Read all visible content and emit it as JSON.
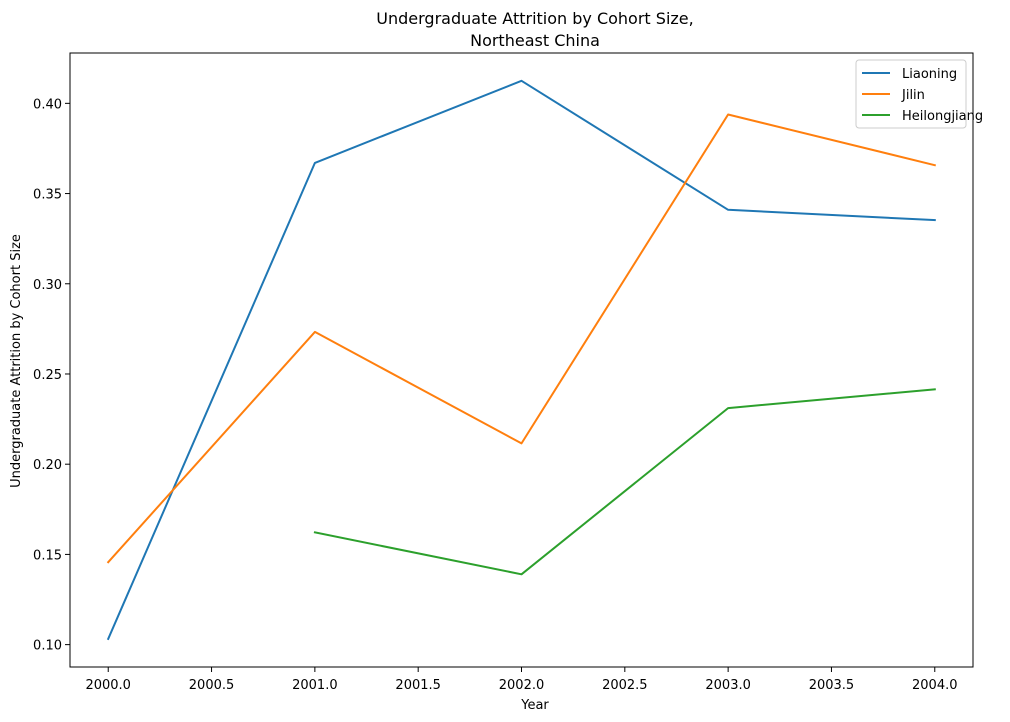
{
  "chart_data": {
    "type": "line",
    "title_lines": [
      "Undergraduate Attrition by Cohort Size,",
      "Northeast China"
    ],
    "xlabel": "Year",
    "ylabel": "Undergraduate Attrition by Cohort Size",
    "xlim": [
      1999.815,
      2004.185
    ],
    "ylim": [
      0.0876,
      0.4279
    ],
    "x_ticks": [
      2000.0,
      2000.5,
      2001.0,
      2001.5,
      2002.0,
      2002.5,
      2003.0,
      2003.5,
      2004.0
    ],
    "x_tick_labels": [
      "2000.0",
      "2000.5",
      "2001.0",
      "2001.5",
      "2002.0",
      "2002.5",
      "2003.0",
      "2003.5",
      "2004.0"
    ],
    "y_ticks": [
      0.1,
      0.15,
      0.2,
      0.25,
      0.3,
      0.35,
      0.4
    ],
    "y_tick_labels": [
      "0.10",
      "0.15",
      "0.20",
      "0.25",
      "0.30",
      "0.35",
      "0.40"
    ],
    "grid": false,
    "legend_position": "top-right",
    "series": [
      {
        "name": "Liaoning",
        "color": "#1f77b4",
        "x": [
          2000,
          2001,
          2002,
          2003,
          2004
        ],
        "y": [
          0.1032,
          0.367,
          0.4125,
          0.341,
          0.3353
        ]
      },
      {
        "name": "Jilin",
        "color": "#ff7f0e",
        "x": [
          2000,
          2001,
          2002,
          2003,
          2004
        ],
        "y": [
          0.1457,
          0.2733,
          0.2115,
          0.3938,
          0.3657
        ]
      },
      {
        "name": "Heilongjiang",
        "color": "#2ca02c",
        "x": [
          2001,
          2002,
          2003,
          2004
        ],
        "y": [
          0.1622,
          0.139,
          0.2311,
          0.2415
        ]
      }
    ]
  }
}
